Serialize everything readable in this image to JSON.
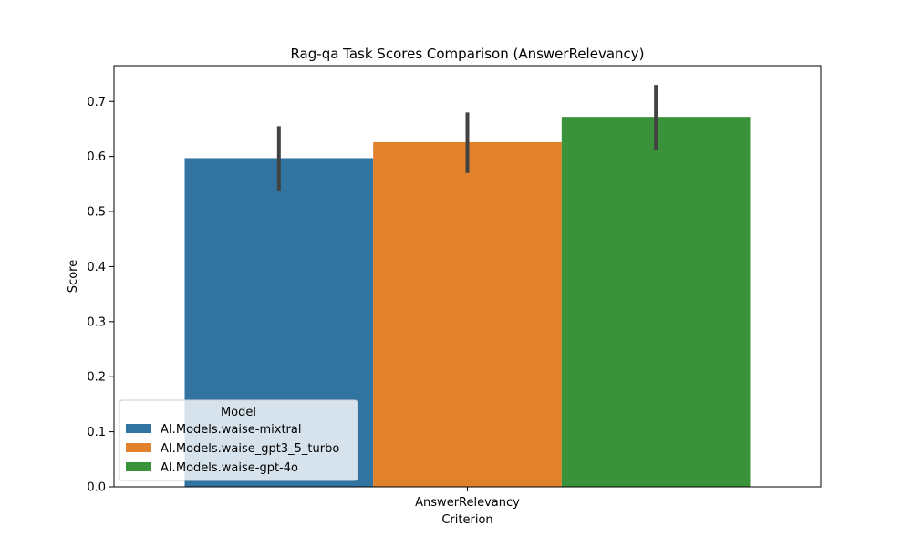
{
  "chart_data": {
    "type": "bar",
    "title": "Rag-qa Task Scores Comparison (AnswerRelevancy)",
    "xlabel": "Criterion",
    "ylabel": "Score",
    "categories": [
      "AnswerRelevancy"
    ],
    "ylim": [
      0,
      0.765
    ],
    "yticks": [
      "0.0",
      "0.1",
      "0.2",
      "0.3",
      "0.4",
      "0.5",
      "0.6",
      "0.7"
    ],
    "grid": false,
    "legend": {
      "title": "Model",
      "placement": "lower-left"
    },
    "series": [
      {
        "name": "AI.Models.waise-mixtral",
        "color": "#3274a1",
        "values": [
          0.597
        ],
        "ci": [
          [
            0.537,
            0.655
          ]
        ]
      },
      {
        "name": "AI.Models.waise_gpt3_5_turbo",
        "color": "#e1812c",
        "values": [
          0.626
        ],
        "ci": [
          [
            0.57,
            0.68
          ]
        ]
      },
      {
        "name": "AI.Models.waise-gpt-4o",
        "color": "#3a923a",
        "values": [
          0.672
        ],
        "ci": [
          [
            0.612,
            0.73
          ]
        ]
      }
    ],
    "errorbar_color": "#424242"
  }
}
